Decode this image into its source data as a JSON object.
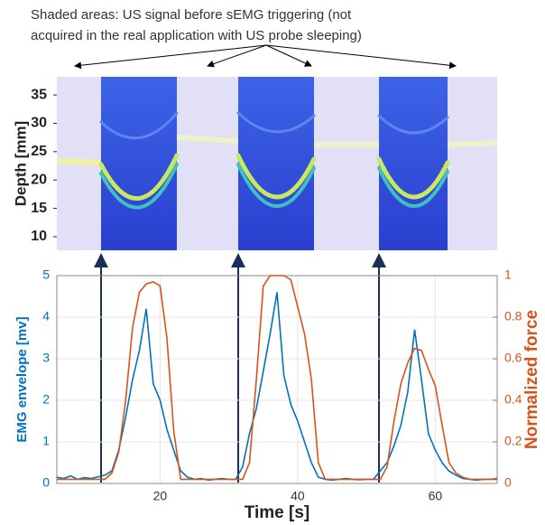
{
  "chart_data": [
    {
      "type": "image",
      "annotation": [
        "Shaded areas: US signal before sEMG triggering (not",
        "acquired in the real application with US probe sleeping)"
      ],
      "ylabel": "Depth [mm]",
      "ylim": [
        7.6,
        38.2
      ],
      "yticks": [
        10,
        15,
        20,
        25,
        30,
        35
      ]
    },
    {
      "type": "line",
      "xlabel": "Time [s]",
      "ylabel": "EMG envelope [mv]",
      "y2label": "Normalized force",
      "xlim": [
        5,
        69
      ],
      "xticks": [
        20,
        40,
        60
      ],
      "ylim": [
        0,
        5
      ],
      "yticks": [
        0,
        1,
        2,
        3,
        4,
        5
      ],
      "y2lim": [
        0,
        1
      ],
      "y2ticks": [
        0,
        0.2,
        0.4,
        0.6,
        0.8,
        1
      ],
      "grid": true,
      "x": [
        5,
        6,
        7,
        8,
        9,
        10,
        11,
        12,
        13,
        14,
        15,
        16,
        17,
        18,
        19,
        20,
        21,
        22,
        23,
        24,
        25,
        26,
        27,
        28,
        29,
        30,
        31,
        32,
        33,
        34,
        35,
        36,
        37,
        38,
        39,
        40,
        41,
        42,
        43,
        44,
        45,
        46,
        47,
        48,
        49,
        50,
        51,
        52,
        53,
        54,
        55,
        56,
        57,
        58,
        59,
        60,
        61,
        62,
        63,
        64,
        65,
        66,
        67,
        68,
        69
      ],
      "series": [
        {
          "color": "#0072bd",
          "axis": "y",
          "values": [
            0.15,
            0.12,
            0.18,
            0.1,
            0.14,
            0.12,
            0.16,
            0.2,
            0.3,
            0.8,
            1.6,
            2.5,
            3.2,
            4.2,
            2.4,
            2.0,
            1.3,
            0.8,
            0.3,
            0.15,
            0.1,
            0.12,
            0.08,
            0.1,
            0.12,
            0.1,
            0.1,
            0.4,
            1.2,
            1.8,
            2.7,
            3.6,
            4.6,
            2.6,
            1.9,
            1.5,
            1.0,
            0.5,
            0.15,
            0.1,
            0.08,
            0.1,
            0.12,
            0.1,
            0.09,
            0.1,
            0.1,
            0.3,
            0.5,
            0.9,
            1.4,
            2.2,
            3.7,
            2.5,
            1.2,
            0.8,
            0.5,
            0.3,
            0.2,
            0.12,
            0.1,
            0.08,
            0.1,
            0.1,
            0.12
          ]
        },
        {
          "color": "#d95319",
          "axis": "y2",
          "values": [
            0.02,
            0.02,
            0.02,
            0.02,
            0.02,
            0.02,
            0.02,
            0.02,
            0.05,
            0.15,
            0.4,
            0.75,
            0.92,
            0.96,
            0.97,
            0.95,
            0.7,
            0.25,
            0.02,
            0.02,
            0.02,
            0.02,
            0.02,
            0.02,
            0.02,
            0.02,
            0.02,
            0.02,
            0.1,
            0.5,
            0.95,
            1.0,
            1.0,
            1.0,
            0.98,
            0.85,
            0.72,
            0.5,
            0.1,
            0.02,
            0.02,
            0.02,
            0.02,
            0.02,
            0.02,
            0.02,
            0.02,
            0.02,
            0.08,
            0.3,
            0.48,
            0.58,
            0.65,
            0.64,
            0.55,
            0.47,
            0.28,
            0.1,
            0.05,
            0.03,
            0.02,
            0.02,
            0.02,
            0.02,
            0.02
          ]
        }
      ]
    }
  ]
}
